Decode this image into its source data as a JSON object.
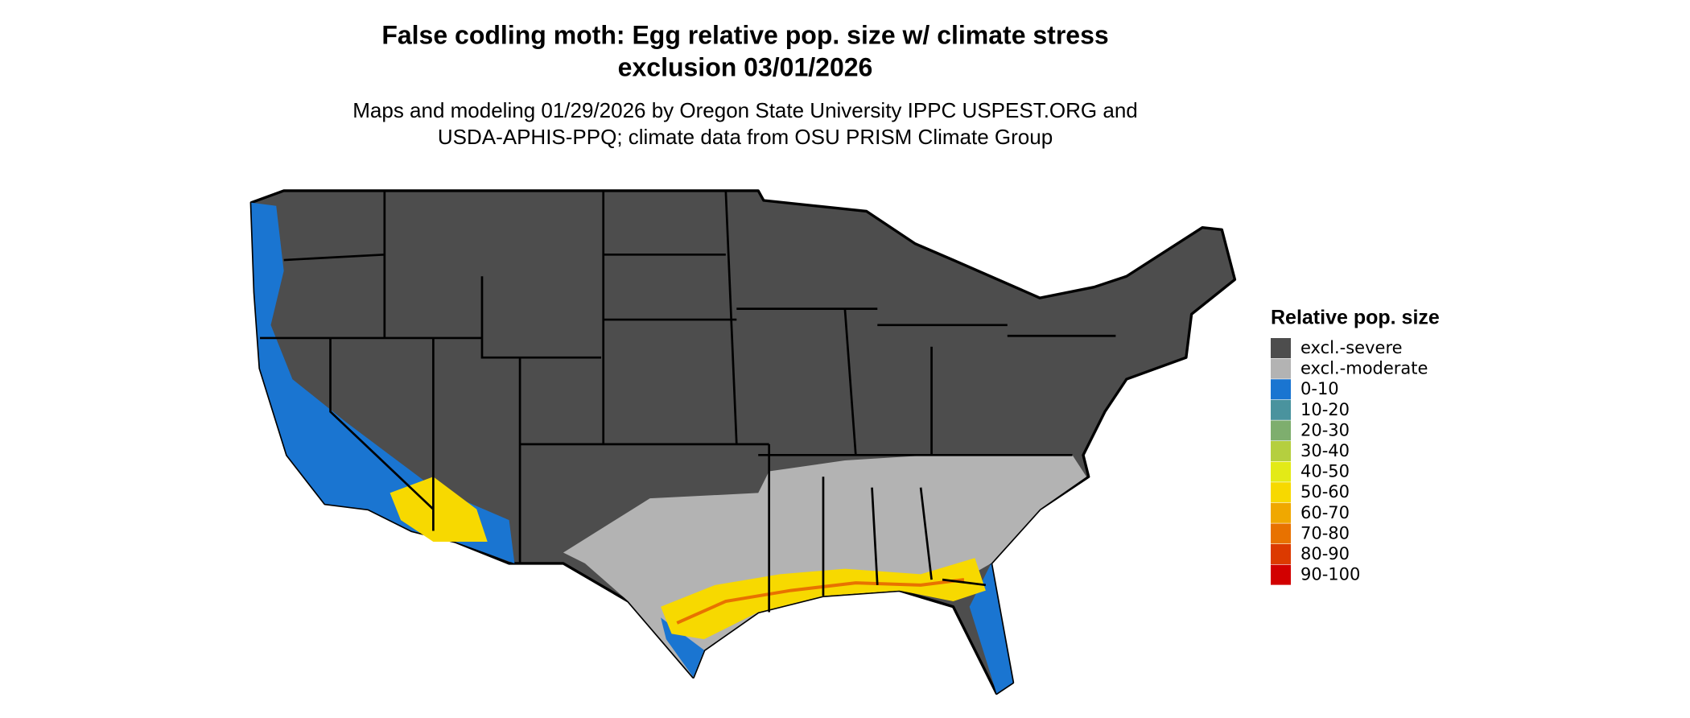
{
  "title": [
    "False codling moth: Egg relative pop. size w/ climate stress",
    "exclusion 03/01/2026"
  ],
  "subtitle": [
    "Maps and modeling 01/29/2026 by Oregon State University IPPC USPEST.ORG and",
    "USDA-APHIS-PPQ; climate data from OSU PRISM Climate Group"
  ],
  "legend": {
    "title": "Relative pop. size",
    "items": [
      {
        "label": "excl.-severe",
        "color": "#4d4d4d"
      },
      {
        "label": "excl.-moderate",
        "color": "#b3b3b3"
      },
      {
        "label": "0-10",
        "color": "#1a75d1"
      },
      {
        "label": "10-20",
        "color": "#4a939e"
      },
      {
        "label": "20-30",
        "color": "#7eae6e"
      },
      {
        "label": "30-40",
        "color": "#b5cf3f"
      },
      {
        "label": "40-50",
        "color": "#e3ea17"
      },
      {
        "label": "50-60",
        "color": "#f7d900"
      },
      {
        "label": "60-70",
        "color": "#f0a800"
      },
      {
        "label": "70-80",
        "color": "#e87200"
      },
      {
        "label": "80-90",
        "color": "#dc3a00"
      },
      {
        "label": "90-100",
        "color": "#d20000"
      }
    ]
  }
}
